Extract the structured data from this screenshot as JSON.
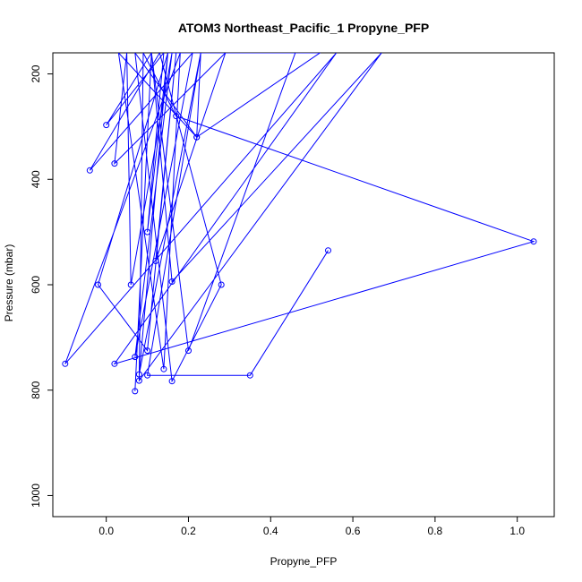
{
  "chart_data": {
    "type": "line",
    "title": "ATOM3 Northeast_Pacific_1 Propyne_PFP",
    "xlabel": "Propyne_PFP",
    "ylabel": "Pressure (mbar)",
    "xlim": [
      -0.13,
      1.09
    ],
    "ylim": [
      1040,
      160
    ],
    "y_reversed": true,
    "x_ticks": [
      0.0,
      0.2,
      0.4,
      0.6,
      0.8,
      1.0
    ],
    "x_tick_labels": [
      "0.0",
      "0.2",
      "0.4",
      "0.6",
      "0.8",
      "1.0"
    ],
    "y_ticks": [
      200,
      400,
      600,
      800,
      1000
    ],
    "y_tick_labels": [
      "200",
      "400",
      "600",
      "800",
      "1000"
    ],
    "grid": false,
    "legend": "none",
    "color": "#0000ff",
    "series": [
      {
        "x": [
          0.54,
          0.35,
          0.1,
          0.23,
          0.52,
          0.22,
          0.23,
          0.08,
          0.15,
          0.46,
          0.2,
          0.11,
          0.16,
          0.67,
          0.08,
          0.09,
          0.17,
          1.04,
          0.02,
          0.56,
          -0.1,
          0.18,
          0.14,
          0.03,
          0.22,
          0.07,
          0.16,
          0.28,
          0.13,
          -0.04,
          0.21,
          0.07,
          0.16,
          0.06,
          0.05,
          0.02,
          0.29,
          0.12,
          0.17,
          0.1,
          -0.02,
          0.15,
          0.1,
          0.14,
          0.0,
          0.11,
          0.07
        ],
        "y": [
          535,
          772,
          772,
          160,
          160,
          320,
          160,
          770,
          160,
          160,
          725,
          160,
          594,
          160,
          782,
          160,
          280,
          518,
          750,
          160,
          750,
          160,
          760,
          160,
          320,
          160,
          783,
          600,
          160,
          383,
          160,
          737,
          160,
          600,
          160,
          370,
          160,
          555,
          160,
          725,
          600,
          160,
          500,
          160,
          297,
          160,
          802
        ]
      }
    ]
  }
}
